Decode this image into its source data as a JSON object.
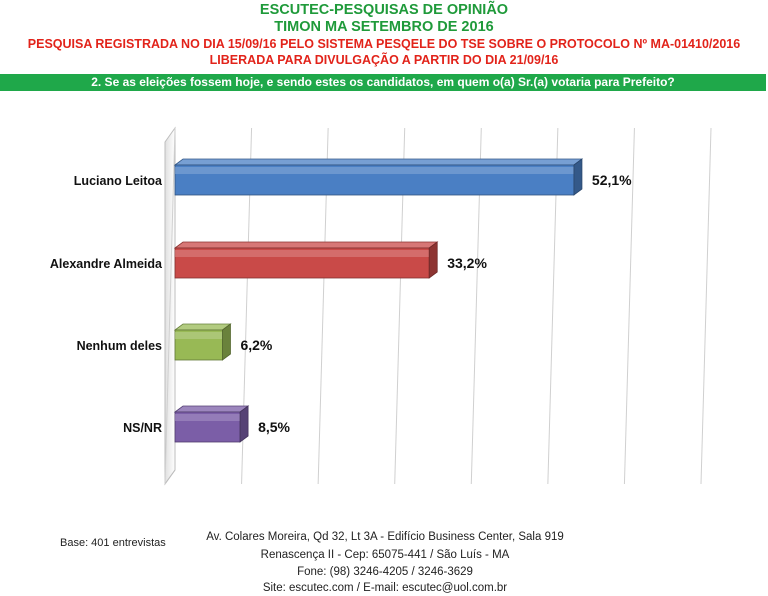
{
  "header": {
    "line1": "ESCUTEC-PESQUISAS DE OPINIÃO",
    "line2": "TIMON MA SETEMBRO DE 2016",
    "line3": "PESQUISA REGISTRADA NO DIA 15/09/16 PELO SISTEMA PESQELE DO TSE SOBRE O PROTOCOLO Nº MA-01410/2016",
    "line4": "LIBERADA PARA DIVULGAÇÃO A PARTIR DO DIA 21/09/16"
  },
  "question": "2. Se as eleições fossem hoje, e sendo estes os candidatos, em quem o(a) Sr.(a) votaria para Prefeito?",
  "chart_data": {
    "type": "bar",
    "orientation": "horizontal",
    "style": "3d",
    "categories": [
      "Luciano Leitoa",
      "Alexandre Almeida",
      "Nenhum deles",
      "NS/NR"
    ],
    "values": [
      52.1,
      33.2,
      6.2,
      8.5
    ],
    "data_labels": [
      "52,1%",
      "33,2%",
      "6,2%",
      "8,5%"
    ],
    "colors": [
      "#4a7fc4",
      "#c94a48",
      "#98b955",
      "#7b5ea7"
    ],
    "xlim": [
      0,
      70
    ],
    "grid": true,
    "legend": "none"
  },
  "footer": {
    "base": "Base: 401 entrevistas",
    "address1": "Av. Colares Moreira, Qd 32, Lt 3A - Edifício Business Center, Sala 919",
    "address2": "Renascença II - Cep: 65075-441 / São Luís - MA",
    "phone": "Fone: (98) 3246-4205 / 3246-3629",
    "site": "Site: escutec.com / E-mail: escutec@uol.com.br"
  }
}
